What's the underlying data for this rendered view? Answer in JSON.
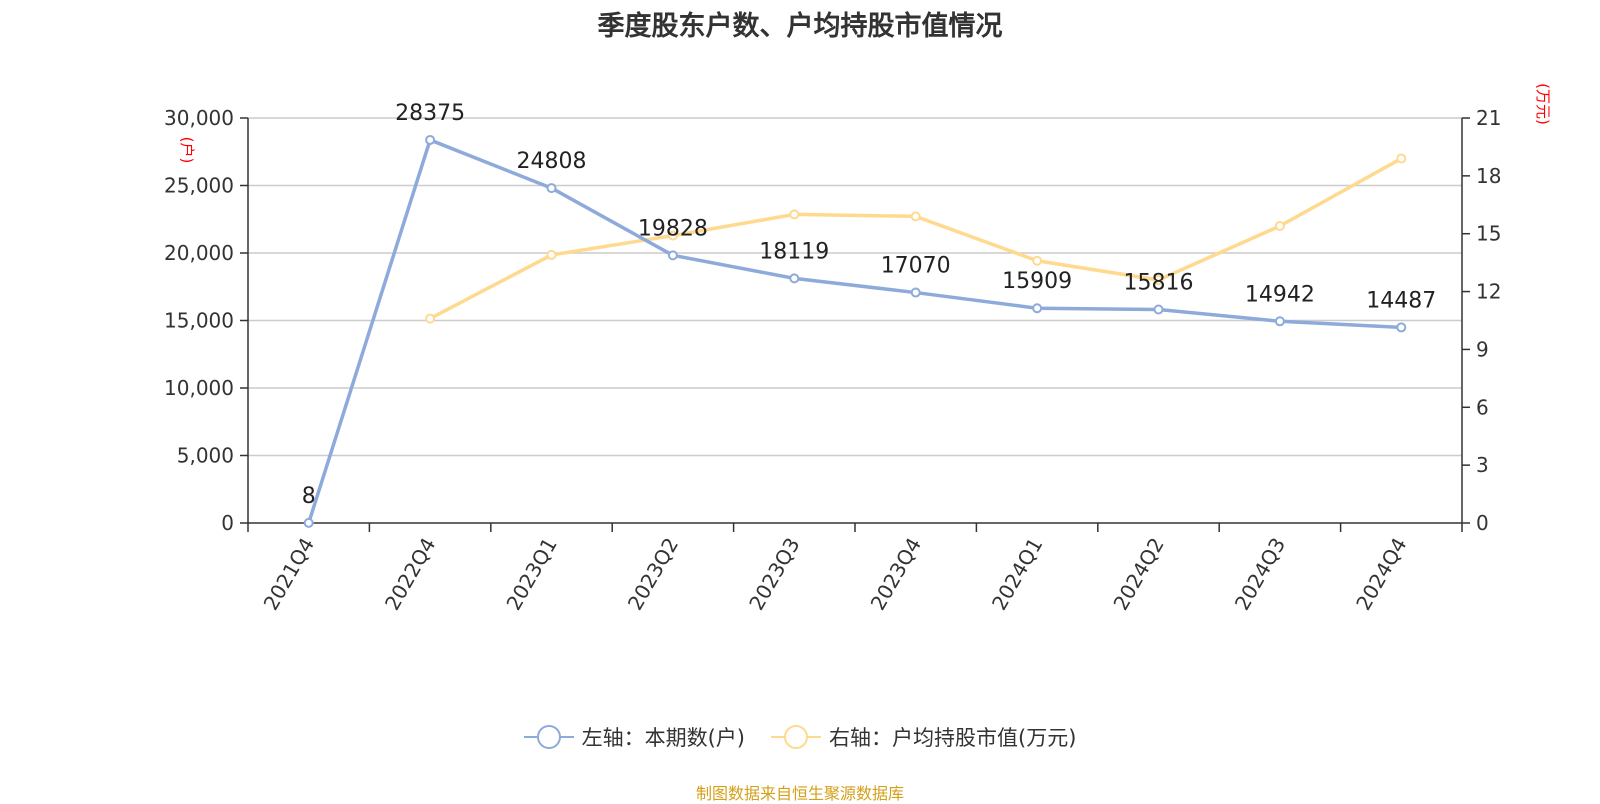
{
  "chart_data": {
    "type": "line",
    "title": "季度股东户数、户均持股市值情况",
    "categories": [
      "2021Q4",
      "2022Q4",
      "2023Q1",
      "2023Q2",
      "2023Q3",
      "2023Q4",
      "2024Q1",
      "2024Q2",
      "2024Q3",
      "2024Q4"
    ],
    "y_left": {
      "unit": "(户)",
      "range": [
        0,
        30000
      ],
      "ticks": [
        "0",
        "5,000",
        "10,000",
        "15,000",
        "20,000",
        "25,000",
        "30,000"
      ]
    },
    "y_right": {
      "unit": "(万元)",
      "range": [
        0,
        21
      ],
      "ticks": [
        "0",
        "3",
        "6",
        "9",
        "12",
        "15",
        "18",
        "21"
      ]
    },
    "grid": true,
    "legend_position": "bottom",
    "series": [
      {
        "name": "左轴：本期数(户)",
        "axis": "left",
        "color": "#8eaadb",
        "values": [
          8,
          28375,
          24808,
          19828,
          18119,
          17070,
          15909,
          15816,
          14942,
          14487
        ],
        "labels": [
          "8",
          "28375",
          "24808",
          "19828",
          "18119",
          "17070",
          "15909",
          "15816",
          "14942",
          "14487"
        ]
      },
      {
        "name": "右轴：户均持股市值(万元)",
        "axis": "right",
        "color": "#ffd98e",
        "values": [
          null,
          10.6,
          13.9,
          14.9,
          16.0,
          15.9,
          13.6,
          12.6,
          15.4,
          18.9
        ]
      }
    ],
    "source": "制图数据来自恒生聚源数据库"
  }
}
